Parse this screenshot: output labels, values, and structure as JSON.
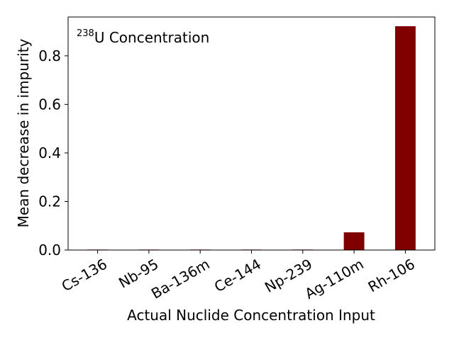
{
  "chart_data": {
    "type": "bar",
    "title_mass": "238",
    "title_text": "U Concentration",
    "xlabel": "Actual Nuclide Concentration Input",
    "ylabel": "Mean decrease in impurity",
    "categories": [
      "Cs-136",
      "Nb-95",
      "Ba-136m",
      "Ce-144",
      "Np-239",
      "Ag-110m",
      "Rh-106"
    ],
    "values": [
      0.002,
      0.002,
      0.002,
      0.002,
      0.002,
      0.073,
      0.922
    ],
    "ylim": [
      0,
      0.96
    ],
    "yticks": [
      "0.0",
      "0.2",
      "0.4",
      "0.6",
      "0.8"
    ],
    "ytick_values": [
      0,
      0.2,
      0.4,
      0.6,
      0.8
    ],
    "bar_color": "#800000",
    "grid": false,
    "legend": "none"
  }
}
